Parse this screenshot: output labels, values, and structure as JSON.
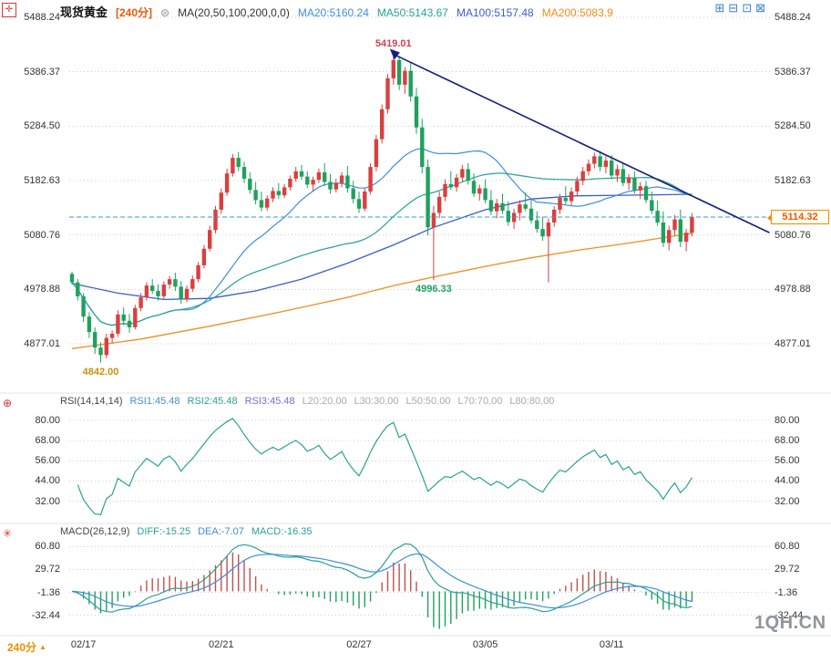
{
  "header": {
    "symbol": "现货黄金",
    "period": "[240分]",
    "ma_settings": "MA(20,50,100,200,0,0)",
    "ma20": "MA20:5160.24",
    "ma50": "MA50:5143.67",
    "ma100": "MA100:5157.48",
    "ma200": "MA200:5083.9"
  },
  "rsi_header": {
    "title": "RSI(14,14,14)",
    "rsi1": "RSI1:45.48",
    "rsi2": "RSI2:45.48",
    "rsi3": "RSI3:45.48",
    "l20": "L20:20.00",
    "l30": "L30:30.00",
    "l50": "L50:50.00",
    "l70": "L70:70.00",
    "l80": "L80:80.00"
  },
  "macd_header": {
    "title": "MACD(26,12,9)",
    "diff": "DIFF:-15.25",
    "dea": "DEA:-7.07",
    "macd": "MACD:-16.35"
  },
  "price_tag": {
    "value": "5114.32"
  },
  "footer": {
    "period": "240分"
  },
  "watermark": "1QH.CN",
  "icons": {
    "draw_tool": "✛",
    "rsi_tool": "⊕",
    "macd_tool": "✳",
    "link": "⊜",
    "triangle": "▲",
    "layout": [
      "⊞",
      "⊟",
      "⊡",
      "⊠"
    ]
  },
  "colors": {
    "up": "#d8403e",
    "down": "#1fa15e",
    "ma20": "#3e8ede",
    "ma50": "#2aa198",
    "ma100": "#3a5fc8",
    "ma200": "#ef8e1c",
    "trendline": "#16207c",
    "last_price_line": "#2e9fd0",
    "grid": "#cccccc",
    "rsi1": "#3e8ede",
    "rsi2": "#2aa198",
    "rsi3": "#7b68d8",
    "level_gray": "#aaaaaa",
    "macd_dif": "#2aa198",
    "macd_dea": "#3e8ede",
    "macd_val": "#2aa198",
    "hist_up": "#c0504d",
    "hist_down": "#1fa15e",
    "accent_orange": "#e8590c",
    "ann_peak": "#cf4156",
    "ann_crash": "#1fa15e",
    "ann_low": "#c8920a"
  },
  "chart_data": [
    {
      "type": "candlestick",
      "title": "现货黄金 240分",
      "ylim": [
        4790,
        5500
      ],
      "price_gridlines": [
        "5488.24",
        "5386.37",
        "5284.50",
        "5182.63",
        "5080.76",
        "4978.88",
        "4877.01"
      ],
      "x_ticks": [
        {
          "label": "02/17",
          "index": 2
        },
        {
          "label": "02/21",
          "index": 26
        },
        {
          "label": "02/27",
          "index": 50
        },
        {
          "label": "03/05",
          "index": 72
        },
        {
          "label": "03/11",
          "index": 94
        }
      ],
      "last_price": 5114.32,
      "annotations": [
        {
          "text": "5419.01",
          "index": 56,
          "price": 5419.01,
          "pos": "above",
          "color_key": "ann_peak"
        },
        {
          "text": "4996.33",
          "index": 63,
          "price": 4996.33,
          "pos": "below",
          "color_key": "ann_crash"
        },
        {
          "text": "4842.00",
          "index": 5,
          "price": 4842.0,
          "pos": "below",
          "color_key": "ann_low"
        }
      ],
      "trendline": {
        "x1_index": 56,
        "y1_price": 5419.01,
        "x2_index": 121.5,
        "y2_price": 5085
      },
      "ma_computed": [
        {
          "name": "MA20",
          "window": 20,
          "color_key": "ma20"
        },
        {
          "name": "MA50",
          "window": 50,
          "color_key": "ma50"
        }
      ],
      "ma_keypoints": [
        {
          "name": "MA100",
          "color_key": "ma100",
          "points": [
            [
              0,
              4990
            ],
            [
              8,
              4972
            ],
            [
              16,
              4960
            ],
            [
              24,
              4962
            ],
            [
              32,
              4976
            ],
            [
              40,
              4998
            ],
            [
              48,
              5028
            ],
            [
              56,
              5062
            ],
            [
              63,
              5095
            ],
            [
              72,
              5128
            ],
            [
              80,
              5148
            ],
            [
              88,
              5154
            ],
            [
              96,
              5155
            ],
            [
              102,
              5156
            ],
            [
              108,
              5157
            ]
          ]
        },
        {
          "name": "MA200",
          "color_key": "ma200",
          "points": [
            [
              0,
              4868
            ],
            [
              12,
              4886
            ],
            [
              24,
              4910
            ],
            [
              36,
              4936
            ],
            [
              48,
              4964
            ],
            [
              56,
              4986
            ],
            [
              63,
              5002
            ],
            [
              72,
              5022
            ],
            [
              80,
              5038
            ],
            [
              88,
              5052
            ],
            [
              96,
              5064
            ],
            [
              102,
              5074
            ],
            [
              108,
              5084
            ]
          ]
        }
      ],
      "ohlc": [
        [
          5008,
          5012,
          4988,
          4992
        ],
        [
          4992,
          4998,
          4958,
          4966
        ],
        [
          4966,
          4972,
          4918,
          4928
        ],
        [
          4928,
          4936,
          4888,
          4899
        ],
        [
          4899,
          4908,
          4858,
          4870
        ],
        [
          4870,
          4880,
          4842,
          4856
        ],
        [
          4856,
          4896,
          4850,
          4888
        ],
        [
          4888,
          4902,
          4878,
          4896
        ],
        [
          4896,
          4940,
          4890,
          4932
        ],
        [
          4932,
          4945,
          4912,
          4920
        ],
        [
          4920,
          4933,
          4898,
          4908
        ],
        [
          4908,
          4950,
          4904,
          4944
        ],
        [
          4944,
          4972,
          4938,
          4964
        ],
        [
          4964,
          4992,
          4958,
          4986
        ],
        [
          4986,
          4998,
          4970,
          4976
        ],
        [
          4976,
          4988,
          4958,
          4966
        ],
        [
          4966,
          4994,
          4960,
          4988
        ],
        [
          4988,
          5004,
          4980,
          4998
        ],
        [
          4998,
          5010,
          4976,
          4984
        ],
        [
          4984,
          4995,
          4952,
          4960
        ],
        [
          4960,
          4986,
          4955,
          4980
        ],
        [
          4980,
          5005,
          4974,
          4998
        ],
        [
          4998,
          5030,
          4992,
          5024
        ],
        [
          5024,
          5062,
          5018,
          5055
        ],
        [
          5055,
          5098,
          5050,
          5090
        ],
        [
          5090,
          5135,
          5084,
          5128
        ],
        [
          5128,
          5168,
          5120,
          5160
        ],
        [
          5160,
          5205,
          5154,
          5196
        ],
        [
          5196,
          5232,
          5190,
          5225
        ],
        [
          5225,
          5236,
          5200,
          5208
        ],
        [
          5208,
          5218,
          5178,
          5186
        ],
        [
          5186,
          5198,
          5158,
          5165
        ],
        [
          5165,
          5180,
          5138,
          5146
        ],
        [
          5146,
          5162,
          5125,
          5132
        ],
        [
          5132,
          5155,
          5126,
          5149
        ],
        [
          5149,
          5170,
          5142,
          5163
        ],
        [
          5163,
          5178,
          5148,
          5155
        ],
        [
          5155,
          5176,
          5150,
          5170
        ],
        [
          5170,
          5192,
          5164,
          5186
        ],
        [
          5186,
          5208,
          5180,
          5200
        ],
        [
          5200,
          5212,
          5184,
          5190
        ],
        [
          5190,
          5200,
          5168,
          5175
        ],
        [
          5175,
          5190,
          5162,
          5184
        ],
        [
          5184,
          5205,
          5178,
          5198
        ],
        [
          5198,
          5215,
          5172,
          5180
        ],
        [
          5180,
          5195,
          5158,
          5166
        ],
        [
          5166,
          5186,
          5160,
          5178
        ],
        [
          5178,
          5198,
          5170,
          5192
        ],
        [
          5192,
          5210,
          5160,
          5168
        ],
        [
          5168,
          5182,
          5140,
          5148
        ],
        [
          5148,
          5162,
          5122,
          5130
        ],
        [
          5130,
          5168,
          5125,
          5162
        ],
        [
          5162,
          5215,
          5156,
          5208
        ],
        [
          5208,
          5268,
          5200,
          5260
        ],
        [
          5260,
          5325,
          5252,
          5316
        ],
        [
          5316,
          5382,
          5308,
          5374
        ],
        [
          5374,
          5419.01,
          5362,
          5408
        ],
        [
          5408,
          5415,
          5352,
          5362
        ],
        [
          5362,
          5395,
          5345,
          5388
        ],
        [
          5388,
          5402,
          5330,
          5340
        ],
        [
          5340,
          5356,
          5270,
          5282
        ],
        [
          5282,
          5298,
          5196,
          5208
        ],
        [
          5208,
          5222,
          5080,
          5095
        ],
        [
          5095,
          5135,
          4996.33,
          5122
        ],
        [
          5122,
          5162,
          5112,
          5152
        ],
        [
          5152,
          5185,
          5144,
          5176
        ],
        [
          5176,
          5200,
          5165,
          5170
        ],
        [
          5170,
          5195,
          5162,
          5188
        ],
        [
          5188,
          5212,
          5180,
          5204
        ],
        [
          5204,
          5215,
          5175,
          5182
        ],
        [
          5182,
          5196,
          5152,
          5158
        ],
        [
          5158,
          5175,
          5145,
          5168
        ],
        [
          5168,
          5185,
          5140,
          5146
        ],
        [
          5146,
          5165,
          5118,
          5125
        ],
        [
          5125,
          5148,
          5112,
          5140
        ],
        [
          5140,
          5158,
          5120,
          5126
        ],
        [
          5126,
          5144,
          5098,
          5105
        ],
        [
          5105,
          5130,
          5092,
          5122
        ],
        [
          5122,
          5146,
          5108,
          5138
        ],
        [
          5138,
          5160,
          5125,
          5130
        ],
        [
          5130,
          5148,
          5102,
          5108
        ],
        [
          5108,
          5125,
          5085,
          5092
        ],
        [
          5092,
          5115,
          5070,
          5078
        ],
        [
          5078,
          5112,
          4992,
          5104
        ],
        [
          5104,
          5135,
          5096,
          5128
        ],
        [
          5128,
          5158,
          5120,
          5150
        ],
        [
          5150,
          5172,
          5138,
          5144
        ],
        [
          5144,
          5170,
          5136,
          5162
        ],
        [
          5162,
          5190,
          5155,
          5182
        ],
        [
          5182,
          5208,
          5174,
          5200
        ],
        [
          5200,
          5222,
          5192,
          5214
        ],
        [
          5214,
          5235,
          5205,
          5228
        ],
        [
          5228,
          5238,
          5200,
          5208
        ],
        [
          5208,
          5228,
          5196,
          5220
        ],
        [
          5220,
          5230,
          5185,
          5192
        ],
        [
          5192,
          5212,
          5180,
          5204
        ],
        [
          5204,
          5215,
          5172,
          5178
        ],
        [
          5178,
          5195,
          5165,
          5188
        ],
        [
          5188,
          5200,
          5158,
          5164
        ],
        [
          5164,
          5180,
          5148,
          5172
        ],
        [
          5172,
          5182,
          5140,
          5146
        ],
        [
          5146,
          5162,
          5120,
          5126
        ],
        [
          5126,
          5145,
          5098,
          5104
        ],
        [
          5104,
          5125,
          5058,
          5066
        ],
        [
          5066,
          5098,
          5052,
          5090
        ],
        [
          5090,
          5118,
          5080,
          5110
        ],
        [
          5110,
          5128,
          5058,
          5068
        ],
        [
          5068,
          5092,
          5050,
          5085
        ],
        [
          5085,
          5122,
          5078,
          5114.32
        ]
      ]
    },
    {
      "type": "line",
      "name": "RSI(14)",
      "window": 14,
      "ylim": [
        22,
        86
      ],
      "gridlines": [
        80,
        68,
        56,
        44,
        32
      ],
      "axis_labels": [
        "80.00",
        "68.00",
        "56.00",
        "44.00",
        "32.00"
      ]
    },
    {
      "type": "bar",
      "name": "MACD(26,12,9)",
      "fast": 12,
      "slow": 26,
      "signal": 9,
      "ylim": [
        -54,
        65
      ],
      "gridlines": [
        60.8,
        29.72,
        -1.36,
        -32.44
      ],
      "axis_labels": [
        "60.80",
        "29.72",
        "-1.36",
        "-32.44"
      ]
    }
  ]
}
